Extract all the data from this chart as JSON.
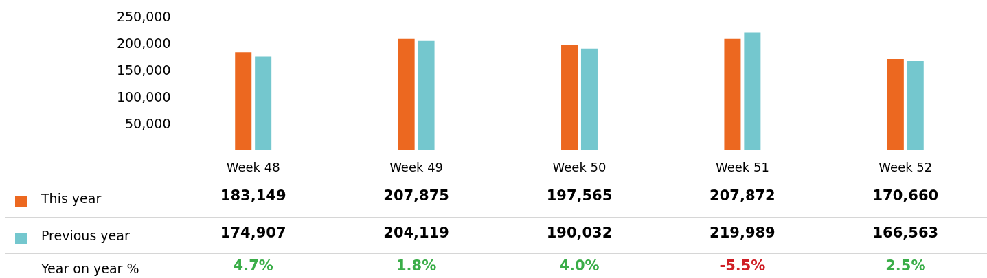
{
  "chart_data": {
    "type": "bar",
    "categories": [
      "Week 48",
      "Week 49",
      "Week 50",
      "Week 51",
      "Week 52"
    ],
    "series": [
      {
        "name": "This year",
        "color": "#ec6820",
        "values": [
          183149,
          207875,
          197565,
          207872,
          170660
        ],
        "value_labels": [
          "183,149",
          "207,875",
          "197,565",
          "207,872",
          "170,660"
        ]
      },
      {
        "name": "Previous year",
        "color": "#74c7ce",
        "values": [
          174907,
          204119,
          190032,
          219989,
          166563
        ],
        "value_labels": [
          "174,907",
          "204,119",
          "190,032",
          "219,989",
          "166,563"
        ]
      }
    ],
    "ylim": [
      0,
      250000
    ],
    "yticks": [
      {
        "value": 50000,
        "label": "50,000"
      },
      {
        "value": 100000,
        "label": "100,000"
      },
      {
        "value": 150000,
        "label": "150,000"
      },
      {
        "value": 200000,
        "label": "200,000"
      },
      {
        "value": 250000,
        "label": "250,000"
      }
    ],
    "legend": "bottom left",
    "annotations": [
      "Year on year %",
      "4.7%",
      "1.8%",
      "4.0%",
      "-5.5%",
      "2.5%"
    ]
  }
}
